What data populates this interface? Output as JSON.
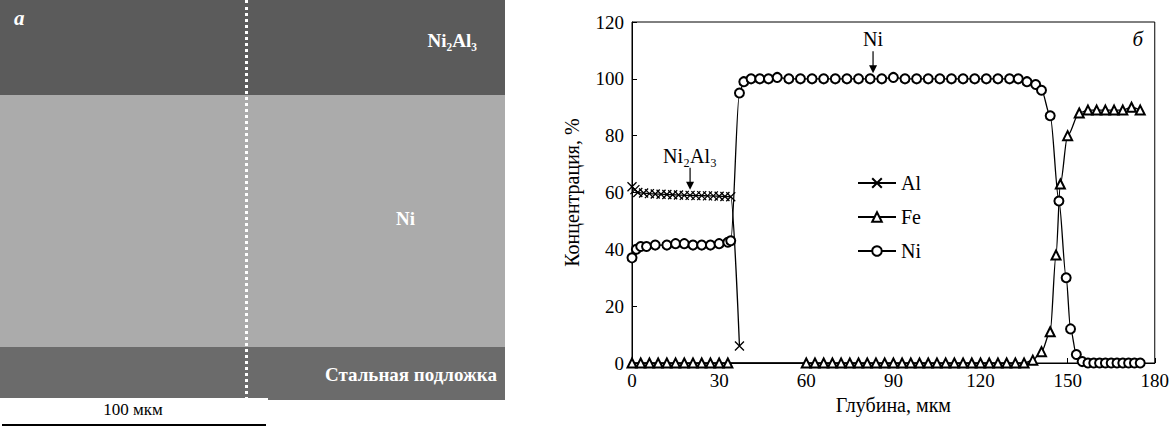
{
  "panel_a": {
    "letter": "a",
    "layers": [
      "Ni₂Al₃",
      "Ni",
      "Стальная подложка"
    ],
    "scale_bar": "100 мкм"
  },
  "chart_data": {
    "type": "line",
    "letter": "б",
    "x_label": "Глубина, мкм",
    "y_label": "Концентрация, %",
    "xlim": [
      0,
      180
    ],
    "xticks": [
      0,
      30,
      60,
      90,
      120,
      150,
      180
    ],
    "ylim": [
      0,
      120
    ],
    "yticks": [
      0,
      20,
      40,
      60,
      80,
      100,
      120
    ],
    "grid": false,
    "legend": "center",
    "series": [
      {
        "name": "Al",
        "color": "#000000",
        "marker": "x",
        "x": [
          0,
          1,
          2,
          4,
          6,
          8,
          10,
          12,
          14,
          16,
          18,
          20,
          22,
          24,
          26,
          28,
          30,
          32,
          34,
          37
        ],
        "values": [
          62,
          61,
          60,
          59.8,
          59.6,
          59.5,
          59.4,
          59.3,
          59.2,
          59.1,
          59,
          59,
          58.9,
          58.9,
          58.8,
          58.8,
          58.7,
          58.6,
          58.5,
          6
        ]
      },
      {
        "name": "Fe",
        "color": "#000000",
        "marker": "triangle",
        "x": [
          0,
          3,
          6,
          9,
          12,
          15,
          18,
          21,
          24,
          27,
          30,
          33,
          60,
          63,
          66,
          69,
          72,
          75,
          78,
          81,
          84,
          87,
          90,
          93,
          96,
          99,
          102,
          105,
          108,
          111,
          114,
          117,
          120,
          123,
          126,
          129,
          132,
          135,
          138,
          141,
          144,
          146,
          147.5,
          150,
          154,
          157,
          160,
          163,
          166,
          169,
          172,
          175
        ],
        "values": [
          0,
          0,
          0,
          0,
          0,
          0,
          0,
          0,
          0,
          0,
          0,
          0,
          0,
          0,
          0,
          0,
          0,
          0,
          0,
          0,
          0,
          0,
          0,
          0,
          0,
          0,
          0,
          0,
          0,
          0,
          0,
          0,
          0,
          0,
          0,
          0,
          0,
          0,
          1,
          4,
          11,
          38,
          63,
          80,
          88,
          89,
          89,
          89,
          89,
          89,
          90,
          89
        ]
      },
      {
        "name": "Ni",
        "color": "#000000",
        "marker": "circle",
        "x": [
          0,
          1.5,
          3,
          5,
          8,
          12,
          15,
          18,
          21,
          24,
          27,
          30,
          33,
          34,
          37,
          38.5,
          41,
          44,
          47,
          50,
          54,
          58,
          62,
          66,
          70,
          74,
          78,
          82,
          86,
          90,
          94,
          98,
          102,
          106,
          110,
          114,
          118,
          122,
          126,
          130,
          133,
          136,
          139,
          141,
          144,
          147,
          149.5,
          151,
          153,
          155,
          157,
          159,
          161,
          163,
          165,
          167,
          169,
          171,
          173,
          175
        ],
        "values": [
          37,
          40,
          41,
          41,
          41.5,
          41.5,
          42,
          42,
          41.5,
          41.5,
          41.5,
          42,
          42.5,
          43,
          95,
          99,
          100,
          100,
          100,
          100.5,
          100,
          100,
          100,
          100,
          100,
          100,
          100,
          100,
          100,
          100.5,
          100,
          100,
          100,
          100,
          100,
          100,
          100,
          100,
          100,
          100,
          100,
          99,
          98,
          96,
          87,
          57,
          30,
          12,
          3,
          0.5,
          0,
          0,
          0,
          0,
          0,
          0,
          0,
          0,
          0,
          0
        ]
      }
    ],
    "annotations": [
      {
        "text": "Ni₂Al₃",
        "x": 20,
        "y": 61
      },
      {
        "text": "Ni",
        "x": 83,
        "y": 102
      }
    ]
  }
}
